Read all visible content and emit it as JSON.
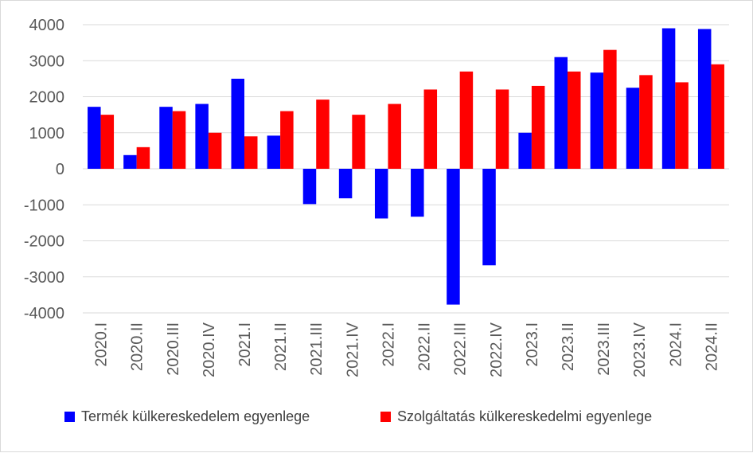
{
  "chart_data": {
    "type": "bar",
    "title": "",
    "xlabel": "",
    "ylabel": "",
    "ylim": [
      -4000,
      4000
    ],
    "yticks": [
      4000,
      3000,
      2000,
      1000,
      0,
      -1000,
      -2000,
      -3000,
      -4000
    ],
    "grid": true,
    "legend_position": "bottom",
    "categories": [
      "2020.I",
      "2020.II",
      "2020.III",
      "2020.IV",
      "2021.I",
      "2021.II",
      "2021.III",
      "2021.IV",
      "2022.I",
      "2022.II",
      "2022.III",
      "2022.IV",
      "2023.I",
      "2023.II",
      "2023.III",
      "2023.IV",
      "2024.I",
      "2024.II"
    ],
    "series": [
      {
        "name": "Termék külkereskedelem egyenlege",
        "color": "#0000ff",
        "values": [
          1720,
          380,
          1720,
          1800,
          2500,
          920,
          -980,
          -820,
          -1380,
          -1330,
          -3770,
          -2680,
          1000,
          3100,
          2670,
          2250,
          3900,
          3880
        ]
      },
      {
        "name": "Szolgáltatás külkereskedelmi egyenlege",
        "color": "#ff0000",
        "values": [
          1500,
          600,
          1600,
          1000,
          900,
          1600,
          1920,
          1500,
          1800,
          2200,
          2700,
          2200,
          2300,
          2700,
          3300,
          2600,
          2400,
          2900
        ]
      }
    ]
  }
}
